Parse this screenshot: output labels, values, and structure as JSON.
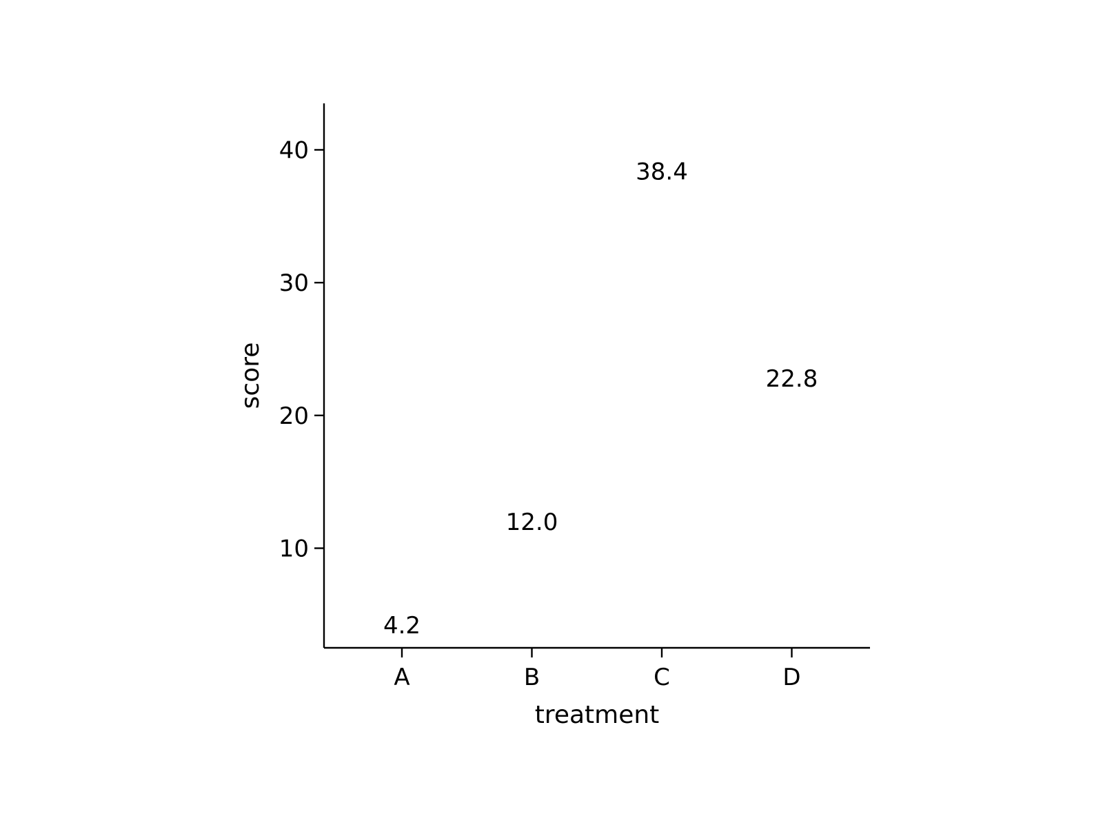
{
  "chart_data": {
    "type": "scatter",
    "marker": "text-label-only",
    "categories": [
      "A",
      "B",
      "C",
      "D"
    ],
    "values": [
      4.2,
      12.0,
      38.4,
      22.8
    ],
    "labels": [
      "4.2",
      "12.0",
      "38.4",
      "22.8"
    ],
    "xlabel": "treatment",
    "ylabel": "score",
    "ylim": [
      2.5,
      43.5
    ],
    "yticks": [
      10,
      20,
      30,
      40
    ],
    "grid": false,
    "legend": "none",
    "colors": {
      "axis": "#000000",
      "text": "#000000",
      "background": "#ffffff"
    }
  }
}
